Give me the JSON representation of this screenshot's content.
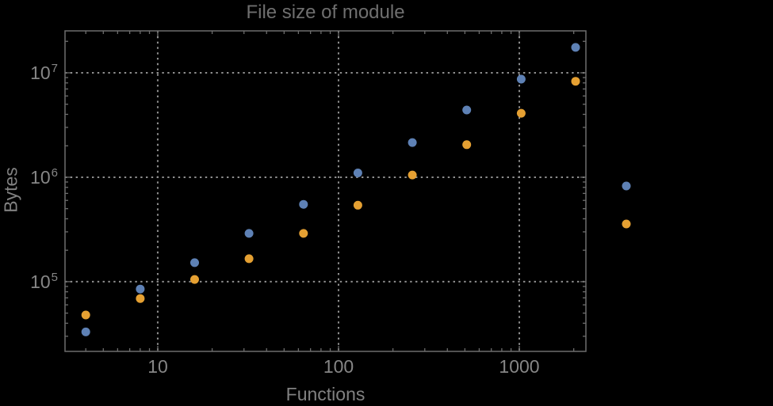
{
  "title": "File size of module",
  "colors": {
    "background": "#000000",
    "frame": "#6d6d6d",
    "grid": "#8f8f8f",
    "tick_text": "#868686",
    "title_text": "#6f6f6f",
    "series_blue": "#5e81b5",
    "series_orange": "#e5a032"
  },
  "chart_data": {
    "type": "scatter",
    "title": "File size of module",
    "xlabel": "Functions",
    "ylabel": "Bytes",
    "x_scale": "log",
    "y_scale": "log",
    "xlim": [
      3.07,
      2335
    ],
    "ylim": [
      21500,
      25200000
    ],
    "grid": "dotted",
    "x_axis": {
      "tick_values": [
        10,
        100,
        1000
      ],
      "tick_labels": [
        "10",
        "100",
        "1000"
      ],
      "minor_decades": [
        0,
        1,
        2,
        3
      ]
    },
    "y_axis": {
      "tick_values": [
        100000,
        1000000,
        10000000
      ],
      "tick_labels": [
        {
          "base": "10",
          "exp": "5"
        },
        {
          "base": "10",
          "exp": "6"
        },
        {
          "base": "10",
          "exp": "7"
        }
      ],
      "minor_decades": [
        4,
        5,
        6,
        7
      ]
    },
    "series": [
      {
        "name": "blue",
        "color": "#5e81b5",
        "points": [
          [
            4,
            33000
          ],
          [
            8,
            85000
          ],
          [
            16,
            152000
          ],
          [
            32,
            290000
          ],
          [
            64,
            550000
          ],
          [
            128,
            1100000
          ],
          [
            256,
            2150000
          ],
          [
            512,
            4400000
          ],
          [
            1024,
            8700000
          ],
          [
            2048,
            17500000
          ]
        ]
      },
      {
        "name": "orange",
        "color": "#e5a032",
        "points": [
          [
            4,
            48000
          ],
          [
            8,
            69000
          ],
          [
            16,
            105000
          ],
          [
            32,
            166000
          ],
          [
            64,
            290000
          ],
          [
            128,
            540000
          ],
          [
            256,
            1050000
          ],
          [
            512,
            2050000
          ],
          [
            1024,
            4100000
          ],
          [
            2048,
            8300000
          ]
        ]
      }
    ],
    "legend_markers": [
      {
        "series": "blue",
        "color": "#5e81b5"
      },
      {
        "series": "orange",
        "color": "#e5a032"
      }
    ]
  }
}
